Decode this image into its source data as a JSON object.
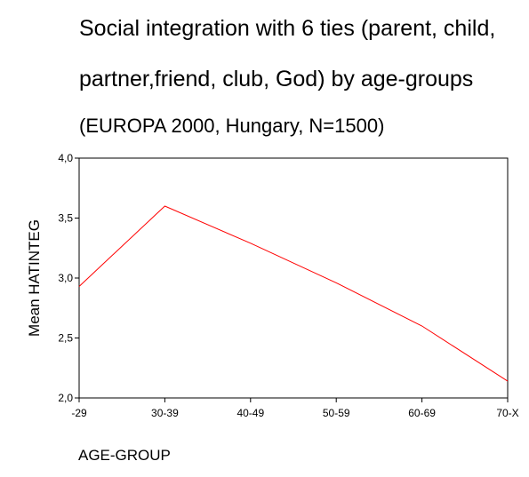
{
  "chart_data": {
    "type": "line",
    "title": "Social integration with 6 ties (parent, child,",
    "subtitle_line2": "partner,friend, club, God) by  age-groups",
    "subtitle_line3": "(EUROPA 2000, Hungary, N=1500)",
    "xlabel": "AGE-GROUP",
    "ylabel": "Mean HATINTEG",
    "categories": [
      "-29",
      "30-39",
      "40-49",
      "50-59",
      "60-69",
      "70-X"
    ],
    "series": [
      {
        "values": [
          2.93,
          3.6,
          3.29,
          2.96,
          2.6,
          2.14
        ],
        "color": "#ff0000"
      }
    ],
    "ylim": [
      2.0,
      4.0
    ],
    "yticks": [
      2.0,
      2.5,
      3.0,
      3.5,
      4.0
    ],
    "ytick_labels": [
      "2,0",
      "2,5",
      "3,0",
      "3,5",
      "4,0"
    ],
    "grid": false,
    "legend": "none"
  }
}
